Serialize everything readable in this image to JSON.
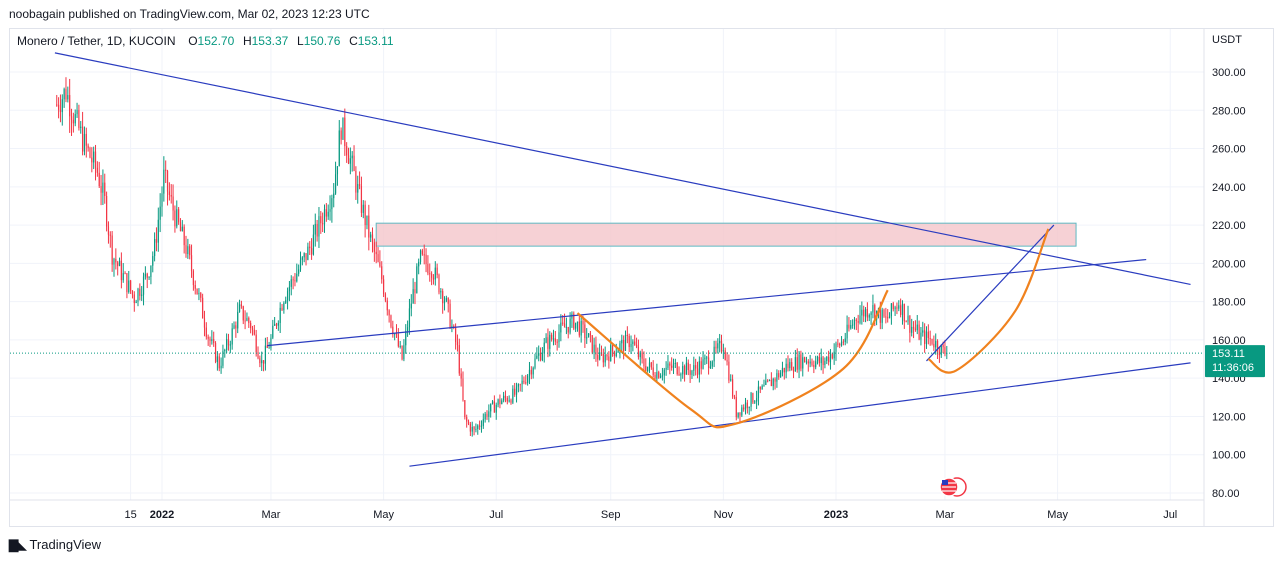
{
  "header": {
    "published": "noobagain published on TradingView.com, Mar 02, 2023 12:23 UTC"
  },
  "legend": {
    "symbol": "Monero / Tether, 1D, KUCOIN",
    "o_label": "O",
    "o_value": "152.70",
    "h_label": "H",
    "h_value": "153.37",
    "l_label": "L",
    "l_value": "150.76",
    "c_label": "C",
    "c_value": "153.11"
  },
  "price_badge": {
    "price": "153.11",
    "countdown": "11:36:06",
    "color": "#089981"
  },
  "footer": {
    "brand": "TradingView"
  },
  "colors": {
    "up": "#089981",
    "down": "#f23645",
    "trendline": "#2a3cbf",
    "curve": "#f0821e",
    "zone_fill": "#f4c6cb",
    "zone_border": "#5fb8c2"
  },
  "chart_data": {
    "type": "candlestick",
    "ylabel": "USDT",
    "ylim": [
      70,
      315
    ],
    "yticks": [
      "80.00",
      "100.00",
      "120.00",
      "140.00",
      "160.00",
      "180.00",
      "200.00",
      "220.00",
      "240.00",
      "260.00",
      "280.00",
      "300.00"
    ],
    "xticks": [
      "15",
      "2022",
      "Mar",
      "May",
      "Jul",
      "Sep",
      "Nov",
      "2023",
      "Mar",
      "May",
      "Jul"
    ],
    "last_price": 153.11,
    "price_path": [
      [
        "2021-11-05",
        283
      ],
      [
        "2021-11-10",
        290
      ],
      [
        "2021-11-14",
        278
      ],
      [
        "2021-11-20",
        262
      ],
      [
        "2021-11-27",
        248
      ],
      [
        "2021-12-01",
        232
      ],
      [
        "2021-12-05",
        205
      ],
      [
        "2021-12-10",
        195
      ],
      [
        "2021-12-17",
        182
      ],
      [
        "2021-12-24",
        194
      ],
      [
        "2021-12-28",
        208
      ],
      [
        "2022-01-02",
        245
      ],
      [
        "2022-01-08",
        225
      ],
      [
        "2022-01-14",
        208
      ],
      [
        "2022-01-21",
        182
      ],
      [
        "2022-01-26",
        162
      ],
      [
        "2022-02-01",
        147
      ],
      [
        "2022-02-07",
        161
      ],
      [
        "2022-02-12",
        175
      ],
      [
        "2022-02-18",
        168
      ],
      [
        "2022-02-24",
        148
      ],
      [
        "2022-03-01",
        160
      ],
      [
        "2022-03-08",
        183
      ],
      [
        "2022-03-15",
        195
      ],
      [
        "2022-03-22",
        208
      ],
      [
        "2022-03-28",
        222
      ],
      [
        "2022-04-04",
        240
      ],
      [
        "2022-04-08",
        272
      ],
      [
        "2022-04-11",
        262
      ],
      [
        "2022-04-17",
        238
      ],
      [
        "2022-04-24",
        212
      ],
      [
        "2022-04-30",
        192
      ],
      [
        "2022-05-05",
        170
      ],
      [
        "2022-05-11",
        150
      ],
      [
        "2022-05-16",
        180
      ],
      [
        "2022-05-21",
        202
      ],
      [
        "2022-05-27",
        198
      ],
      [
        "2022-06-03",
        182
      ],
      [
        "2022-06-10",
        155
      ],
      [
        "2022-06-14",
        118
      ],
      [
        "2022-06-19",
        112
      ],
      [
        "2022-06-26",
        122
      ],
      [
        "2022-07-03",
        128
      ],
      [
        "2022-07-12",
        132
      ],
      [
        "2022-07-20",
        146
      ],
      [
        "2022-07-28",
        158
      ],
      [
        "2022-08-05",
        165
      ],
      [
        "2022-08-12",
        170
      ],
      [
        "2022-08-19",
        162
      ],
      [
        "2022-08-26",
        150
      ],
      [
        "2022-09-03",
        155
      ],
      [
        "2022-09-12",
        160
      ],
      [
        "2022-09-18",
        148
      ],
      [
        "2022-09-26",
        143
      ],
      [
        "2022-10-05",
        146
      ],
      [
        "2022-10-15",
        144
      ],
      [
        "2022-10-25",
        150
      ],
      [
        "2022-11-01",
        158
      ],
      [
        "2022-11-08",
        122
      ],
      [
        "2022-11-15",
        128
      ],
      [
        "2022-11-25",
        136
      ],
      [
        "2022-12-05",
        146
      ],
      [
        "2022-12-15",
        150
      ],
      [
        "2022-12-25",
        148
      ],
      [
        "2023-01-05",
        160
      ],
      [
        "2023-01-12",
        172
      ],
      [
        "2023-01-20",
        177
      ],
      [
        "2023-01-28",
        170
      ],
      [
        "2023-02-04",
        180
      ],
      [
        "2023-02-10",
        168
      ],
      [
        "2023-02-16",
        162
      ],
      [
        "2023-02-22",
        160
      ],
      [
        "2023-02-28",
        154
      ],
      [
        "2023-03-02",
        153.11
      ]
    ],
    "annotations": {
      "resistance_zone": {
        "x": [
          "2022-04-27",
          "2023-05-11"
        ],
        "y": [
          209,
          221
        ]
      },
      "upper_descending_line": {
        "x": [
          "2021-11-04",
          "2023-07-12"
        ],
        "y": [
          310,
          189
        ]
      },
      "upper_rising_line": {
        "x": [
          "2022-02-27",
          "2023-06-18"
        ],
        "y": [
          157,
          202
        ]
      },
      "lower_rising_line": {
        "x": [
          "2022-05-15",
          "2023-07-12"
        ],
        "y": [
          94,
          148
        ]
      },
      "breakout_line": {
        "x": [
          "2023-02-19",
          "2023-04-29"
        ],
        "y": [
          149,
          220
        ]
      },
      "cup_curve": {
        "x": [
          "2022-08-14",
          "2022-10-14",
          "2022-11-07",
          "2023-01-05",
          "2023-01-29"
        ],
        "y": [
          174,
          124,
          116,
          145,
          186
        ]
      },
      "projection_curve": {
        "x": [
          "2023-02-20",
          "2023-03-07",
          "2023-04-08",
          "2023-04-26"
        ],
        "y": [
          150,
          144,
          175,
          218
        ]
      }
    }
  }
}
